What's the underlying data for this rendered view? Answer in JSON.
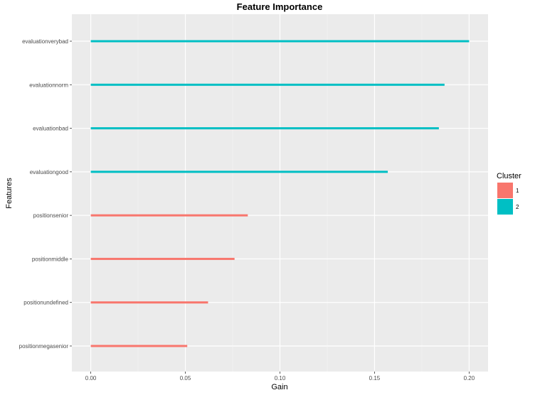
{
  "chart_data": {
    "type": "bar",
    "orientation": "horizontal",
    "title": "Feature Importance",
    "xlabel": "Gain",
    "ylabel": "Features",
    "xlim": [
      -0.01,
      0.21
    ],
    "x_ticks": [
      "0.00",
      "0.05",
      "0.10",
      "0.15",
      "0.20"
    ],
    "x_tick_values": [
      0.0,
      0.05,
      0.1,
      0.15,
      0.2
    ],
    "categories": [
      "evaluationverybad",
      "evaluationnorm",
      "evaluationbad",
      "evaluationgood",
      "positionsenior",
      "positionmiddle",
      "positionundefined",
      "positionmegasenior"
    ],
    "values": [
      0.2,
      0.187,
      0.184,
      0.157,
      0.083,
      0.076,
      0.062,
      0.051
    ],
    "cluster": [
      "2",
      "2",
      "2",
      "2",
      "1",
      "1",
      "1",
      "1"
    ],
    "grid": true,
    "legend": {
      "title": "Cluster",
      "placement": "right",
      "entries": [
        {
          "label": "1",
          "color": "#f8766d"
        },
        {
          "label": "2",
          "color": "#00bfc4"
        }
      ]
    },
    "colors": {
      "1": "#f8766d",
      "2": "#00bfc4"
    }
  }
}
